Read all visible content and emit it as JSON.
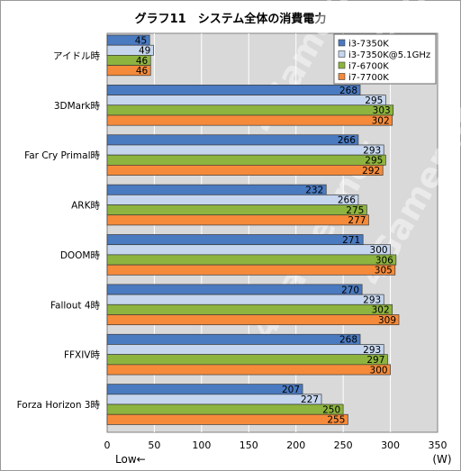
{
  "chart_data": {
    "type": "bar",
    "orientation": "horizontal",
    "title": "グラフ11　システム全体の消費電力",
    "categories": [
      "アイドル時",
      "3DMark時",
      "Far Cry Primal時",
      "ARK時",
      "DOOM時",
      "Fallout 4時",
      "FFXIV時",
      "Forza Horizon 3時"
    ],
    "series": [
      {
        "name": "i3-7350K",
        "color": "#4a7ac0",
        "values": [
          45,
          268,
          266,
          232,
          271,
          270,
          268,
          207
        ]
      },
      {
        "name": "i3-7350K@5.1GHz",
        "color": "#c6d6ee",
        "values": [
          49,
          295,
          293,
          266,
          300,
          293,
          293,
          227
        ]
      },
      {
        "name": "i7-6700K",
        "color": "#8db43e",
        "values": [
          46,
          303,
          295,
          275,
          306,
          302,
          297,
          250
        ]
      },
      {
        "name": "i7-7700K",
        "color": "#f58a3a",
        "values": [
          46,
          302,
          292,
          277,
          305,
          309,
          300,
          255
        ]
      }
    ],
    "xlim": [
      0,
      350
    ],
    "xticks": [
      "0",
      "50",
      "100",
      "150",
      "200",
      "250",
      "300",
      "350"
    ],
    "unit_label": "(W)",
    "direction_note": "Low←",
    "watermark": "4Gamer.net",
    "grid": true,
    "legend_position": "top-right"
  }
}
